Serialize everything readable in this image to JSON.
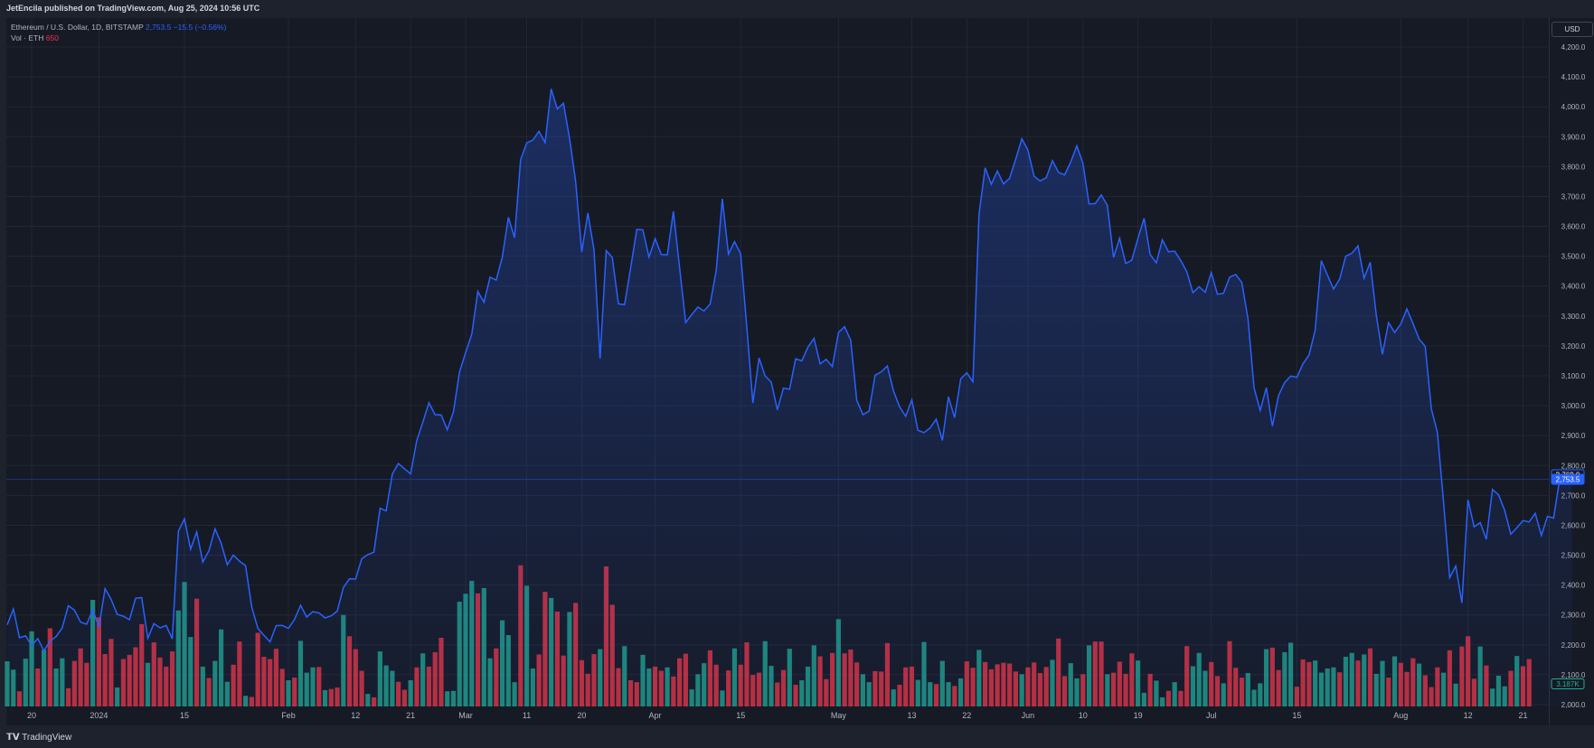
{
  "header": {
    "publisher": "JetEncila published on TradingView.com, Aug 25, 2024 10:56 UTC"
  },
  "legend": {
    "symbol": "Ethereum / U.S. Dollar, 1D, BITSTAMP",
    "price": "2,753.5",
    "change": "−15.5 (−0.56%)",
    "vol_label": "Vol · ETH",
    "vol_value": "650"
  },
  "currency": "USD",
  "footer": {
    "brand": "TradingView"
  },
  "colors": {
    "line": "#2962ff",
    "up": "#22ab94",
    "down": "#f23645",
    "bg": "#161a25"
  },
  "chart_data": {
    "type": "line",
    "y_axis": {
      "range": [
        2000,
        4200
      ],
      "ticks": [
        "2,000.0",
        "2,100.0",
        "2,200.0",
        "2,300.0",
        "2,400.0",
        "2,500.0",
        "2,600.0",
        "2,700.0",
        "2,800.0",
        "2,900.0",
        "3,000.0",
        "3,100.0",
        "3,200.0",
        "3,300.0",
        "3,400.0",
        "3,500.0",
        "3,600.0",
        "3,700.0",
        "3,800.0",
        "3,900.0",
        "4,000.0",
        "4,100.0",
        "4,200.0"
      ]
    },
    "x_ticks": [
      {
        "label": "20",
        "day": 4
      },
      {
        "label": "2024",
        "day": 15
      },
      {
        "label": "15",
        "day": 29
      },
      {
        "label": "Feb",
        "day": 46
      },
      {
        "label": "12",
        "day": 57
      },
      {
        "label": "21",
        "day": 66
      },
      {
        "label": "Mar",
        "day": 75
      },
      {
        "label": "11",
        "day": 85
      },
      {
        "label": "20",
        "day": 94
      },
      {
        "label": "Apr",
        "day": 106
      },
      {
        "label": "15",
        "day": 120
      },
      {
        "label": "May",
        "day": 136
      },
      {
        "label": "13",
        "day": 148
      },
      {
        "label": "22",
        "day": 157
      },
      {
        "label": "Jun",
        "day": 167
      },
      {
        "label": "10",
        "day": 176
      },
      {
        "label": "19",
        "day": 185
      },
      {
        "label": "Jul",
        "day": 197
      },
      {
        "label": "15",
        "day": 211
      },
      {
        "label": "Aug",
        "day": 228
      },
      {
        "label": "12",
        "day": 239
      },
      {
        "label": "21",
        "day": 248
      }
    ],
    "last_price": 2753.5,
    "prev_price": 2769.0,
    "prev_label": "2,769.0",
    "last_label": "2,753.5",
    "vol_label": "3.187K",
    "close": [
      2267,
      2320,
      2224,
      2230,
      2198,
      2221,
      2180,
      2212,
      2228,
      2257,
      2331,
      2316,
      2276,
      2269,
      2317,
      2260,
      2388,
      2352,
      2302,
      2296,
      2284,
      2356,
      2358,
      2222,
      2271,
      2257,
      2265,
      2220,
      2580,
      2622,
      2520,
      2578,
      2477,
      2515,
      2588,
      2540,
      2468,
      2500,
      2480,
      2465,
      2327,
      2255,
      2232,
      2210,
      2264,
      2265,
      2255,
      2285,
      2332,
      2293,
      2311,
      2307,
      2290,
      2297,
      2313,
      2392,
      2421,
      2420,
      2488,
      2502,
      2510,
      2657,
      2648,
      2771,
      2807,
      2789,
      2772,
      2883,
      2945,
      3010,
      2970,
      2969,
      2920,
      2979,
      3112,
      3178,
      3239,
      3382,
      3346,
      3430,
      3420,
      3498,
      3630,
      3562,
      3823,
      3879,
      3889,
      3918,
      3880,
      4060,
      3993,
      4012,
      3895,
      3750,
      3514,
      3645,
      3521,
      3158,
      3519,
      3496,
      3341,
      3338,
      3461,
      3590,
      3588,
      3497,
      3559,
      3506,
      3505,
      3650,
      3463,
      3278,
      3305,
      3330,
      3317,
      3340,
      3453,
      3692,
      3507,
      3549,
      3508,
      3262,
      3009,
      3160,
      3100,
      3079,
      2986,
      3059,
      3055,
      3157,
      3150,
      3196,
      3225,
      3140,
      3155,
      3131,
      3245,
      3264,
      3219,
      3018,
      2970,
      2982,
      3102,
      3113,
      3133,
      3050,
      2996,
      2965,
      3020,
      2918,
      2910,
      2926,
      2955,
      2884,
      3030,
      2960,
      3090,
      3110,
      3080,
      3640,
      3796,
      3741,
      3785,
      3742,
      3761,
      3825,
      3893,
      3855,
      3768,
      3752,
      3763,
      3820,
      3781,
      3772,
      3815,
      3869,
      3810,
      3675,
      3676,
      3705,
      3670,
      3496,
      3560,
      3476,
      3487,
      3560,
      3627,
      3506,
      3478,
      3555,
      3515,
      3517,
      3486,
      3448,
      3378,
      3398,
      3380,
      3445,
      3373,
      3376,
      3430,
      3439,
      3412,
      3291,
      3060,
      2984,
      3060,
      2932,
      3034,
      3077,
      3099,
      3095,
      3140,
      3170,
      3253,
      3485,
      3437,
      3390,
      3424,
      3500,
      3510,
      3535,
      3426,
      3480,
      3303,
      3172,
      3278,
      3245,
      3273,
      3324,
      3275,
      3223,
      3199,
      2990,
      2910,
      2678,
      2425,
      2464,
      2340,
      2685,
      2595,
      2609,
      2553,
      2720,
      2702,
      2650,
      2570,
      2592,
      2616,
      2611,
      2640,
      2566,
      2630,
      2624,
      2754,
      2769,
      2753
    ],
    "volume": [
      [
        119,
        1
      ],
      [
        97,
        1
      ],
      [
        40,
        0
      ],
      [
        126,
        1
      ],
      [
        198,
        1
      ],
      [
        100,
        0
      ],
      [
        149,
        1
      ],
      [
        206,
        0
      ],
      [
        100,
        1
      ],
      [
        127,
        1
      ],
      [
        48,
        0
      ],
      [
        120,
        0
      ],
      [
        153,
        0
      ],
      [
        115,
        0
      ],
      [
        281,
        1
      ],
      [
        235,
        0
      ],
      [
        138,
        0
      ],
      [
        178,
        0
      ],
      [
        50,
        1
      ],
      [
        125,
        0
      ],
      [
        136,
        0
      ],
      [
        156,
        0
      ],
      [
        217,
        0
      ],
      [
        115,
        1
      ],
      [
        169,
        0
      ],
      [
        129,
        0
      ],
      [
        105,
        0
      ],
      [
        145,
        0
      ],
      [
        253,
        1
      ],
      [
        328,
        1
      ],
      [
        183,
        1
      ],
      [
        284,
        0
      ],
      [
        105,
        1
      ],
      [
        75,
        0
      ],
      [
        120,
        1
      ],
      [
        203,
        1
      ],
      [
        65,
        1
      ],
      [
        110,
        0
      ],
      [
        171,
        0
      ],
      [
        28,
        1
      ],
      [
        25,
        0
      ],
      [
        194,
        0
      ],
      [
        131,
        0
      ],
      [
        125,
        0
      ],
      [
        152,
        0
      ],
      [
        99,
        0
      ],
      [
        69,
        1
      ],
      [
        76,
        0
      ],
      [
        173,
        1
      ],
      [
        89,
        1
      ],
      [
        103,
        1
      ],
      [
        104,
        0
      ],
      [
        43,
        1
      ],
      [
        46,
        0
      ],
      [
        50,
        0
      ],
      [
        241,
        1
      ],
      [
        185,
        0
      ],
      [
        151,
        0
      ],
      [
        94,
        0
      ],
      [
        33,
        1
      ],
      [
        24,
        0
      ],
      [
        145,
        1
      ],
      [
        108,
        1
      ],
      [
        94,
        1
      ],
      [
        65,
        0
      ],
      [
        44,
        0
      ],
      [
        69,
        1
      ],
      [
        103,
        0
      ],
      [
        140,
        1
      ],
      [
        105,
        0
      ],
      [
        143,
        0
      ],
      [
        181,
        0
      ],
      [
        40,
        1
      ],
      [
        41,
        1
      ],
      [
        276,
        1
      ],
      [
        297,
        1
      ],
      [
        331,
        1
      ],
      [
        298,
        0
      ],
      [
        312,
        1
      ],
      [
        127,
        1
      ],
      [
        153,
        0
      ],
      [
        227,
        1
      ],
      [
        188,
        1
      ],
      [
        64,
        1
      ],
      [
        372,
        0
      ],
      [
        318,
        1
      ],
      [
        100,
        1
      ],
      [
        137,
        0
      ],
      [
        302,
        0
      ],
      [
        286,
        1
      ],
      [
        250,
        0
      ],
      [
        134,
        0
      ],
      [
        249,
        1
      ],
      [
        273,
        0
      ],
      [
        122,
        0
      ],
      [
        86,
        0
      ],
      [
        138,
        0
      ],
      [
        151,
        1
      ],
      [
        369,
        0
      ],
      [
        268,
        0
      ],
      [
        101,
        0
      ],
      [
        159,
        1
      ],
      [
        69,
        0
      ],
      [
        64,
        0
      ],
      [
        136,
        1
      ],
      [
        100,
        1
      ],
      [
        105,
        0
      ],
      [
        94,
        0
      ],
      [
        103,
        1
      ],
      [
        79,
        0
      ],
      [
        127,
        0
      ],
      [
        139,
        0
      ],
      [
        45,
        1
      ],
      [
        85,
        1
      ],
      [
        114,
        1
      ],
      [
        148,
        0
      ],
      [
        110,
        0
      ],
      [
        42,
        1
      ],
      [
        95,
        0
      ],
      [
        153,
        1
      ],
      [
        110,
        0
      ],
      [
        169,
        0
      ],
      [
        83,
        0
      ],
      [
        89,
        0
      ],
      [
        172,
        1
      ],
      [
        107,
        1
      ],
      [
        63,
        0
      ],
      [
        96,
        0
      ],
      [
        152,
        1
      ],
      [
        57,
        0
      ],
      [
        69,
        1
      ],
      [
        105,
        1
      ],
      [
        161,
        1
      ],
      [
        132,
        0
      ],
      [
        72,
        0
      ],
      [
        141,
        0
      ],
      [
        230,
        1
      ],
      [
        140,
        0
      ],
      [
        150,
        0
      ],
      [
        116,
        0
      ],
      [
        85,
        1
      ],
      [
        64,
        1
      ],
      [
        93,
        0
      ],
      [
        92,
        0
      ],
      [
        167,
        0
      ],
      [
        45,
        1
      ],
      [
        57,
        0
      ],
      [
        103,
        0
      ],
      [
        105,
        0
      ],
      [
        70,
        1
      ],
      [
        170,
        1
      ],
      [
        64,
        1
      ],
      [
        59,
        0
      ],
      [
        120,
        1
      ],
      [
        64,
        1
      ],
      [
        54,
        0
      ],
      [
        74,
        1
      ],
      [
        119,
        0
      ],
      [
        102,
        0
      ],
      [
        149,
        1
      ],
      [
        117,
        0
      ],
      [
        98,
        0
      ],
      [
        111,
        0
      ],
      [
        115,
        0
      ],
      [
        113,
        0
      ],
      [
        92,
        0
      ],
      [
        85,
        1
      ],
      [
        103,
        0
      ],
      [
        116,
        0
      ],
      [
        88,
        0
      ],
      [
        104,
        0
      ],
      [
        123,
        1
      ],
      [
        179,
        0
      ],
      [
        80,
        0
      ],
      [
        114,
        1
      ],
      [
        74,
        1
      ],
      [
        85,
        0
      ],
      [
        161,
        1
      ],
      [
        171,
        0
      ],
      [
        171,
        0
      ],
      [
        85,
        1
      ],
      [
        89,
        0
      ],
      [
        118,
        0
      ],
      [
        86,
        0
      ],
      [
        140,
        0
      ],
      [
        121,
        1
      ],
      [
        36,
        1
      ],
      [
        86,
        0
      ],
      [
        68,
        1
      ],
      [
        24,
        1
      ],
      [
        41,
        0
      ],
      [
        64,
        1
      ],
      [
        41,
        0
      ],
      [
        159,
        0
      ],
      [
        106,
        1
      ],
      [
        141,
        1
      ],
      [
        94,
        1
      ],
      [
        117,
        0
      ],
      [
        80,
        0
      ],
      [
        61,
        1
      ],
      [
        172,
        0
      ],
      [
        102,
        0
      ],
      [
        76,
        0
      ],
      [
        88,
        1
      ],
      [
        44,
        1
      ],
      [
        61,
        1
      ],
      [
        151,
        1
      ],
      [
        155,
        0
      ],
      [
        96,
        0
      ],
      [
        143,
        1
      ],
      [
        168,
        1
      ],
      [
        52,
        0
      ],
      [
        124,
        0
      ],
      [
        117,
        0
      ],
      [
        121,
        1
      ],
      [
        89,
        1
      ],
      [
        100,
        1
      ],
      [
        103,
        1
      ],
      [
        90,
        0
      ],
      [
        131,
        1
      ],
      [
        141,
        1
      ],
      [
        121,
        0
      ],
      [
        137,
        1
      ],
      [
        153,
        0
      ],
      [
        86,
        1
      ],
      [
        120,
        1
      ],
      [
        76,
        0
      ],
      [
        132,
        1
      ],
      [
        115,
        0
      ],
      [
        91,
        0
      ],
      [
        127,
        0
      ],
      [
        113,
        1
      ],
      [
        82,
        0
      ],
      [
        51,
        0
      ],
      [
        103,
        0
      ],
      [
        89,
        1
      ],
      [
        148,
        0
      ],
      [
        60,
        1
      ],
      [
        158,
        0
      ],
      [
        185,
        0
      ],
      [
        73,
        0
      ],
      [
        158,
        1
      ],
      [
        108,
        0
      ],
      [
        47,
        1
      ],
      [
        81,
        1
      ],
      [
        53,
        1
      ],
      [
        94,
        0
      ],
      [
        133,
        1
      ],
      [
        106,
        0
      ],
      [
        125,
        0
      ]
    ]
  }
}
